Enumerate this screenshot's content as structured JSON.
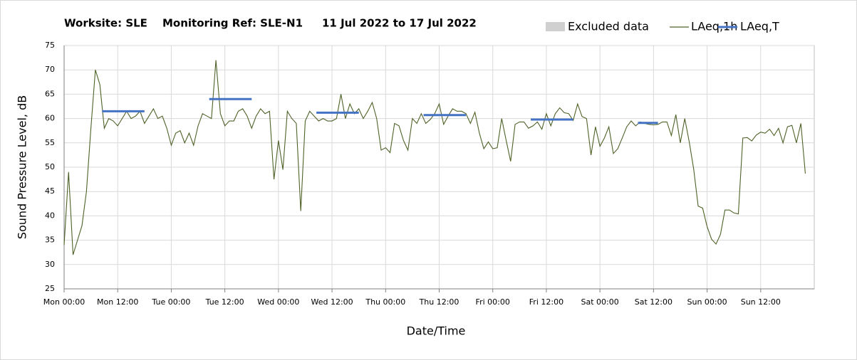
{
  "chart_data": {
    "type": "line",
    "title": [
      "Worksite: SLE",
      "Monitoring Ref: SLE-N1",
      "11 Jul 2022 to 17 Jul 2022"
    ],
    "xlabel": "Date/Time",
    "ylabel": "Sound Pressure Level, dB",
    "excluded_legend": {
      "name": "Excluded data",
      "color": "#d0d0d0"
    },
    "xlim": [
      0,
      168
    ],
    "xticks": [
      {
        "value": 0,
        "label": "Mon 00:00"
      },
      {
        "value": 12,
        "label": "Mon 12:00"
      },
      {
        "value": 24,
        "label": "Tue 00:00"
      },
      {
        "value": 36,
        "label": "Tue 12:00"
      },
      {
        "value": 48,
        "label": "Wed 00:00"
      },
      {
        "value": 60,
        "label": "Wed 12:00"
      },
      {
        "value": 72,
        "label": "Thu 00:00"
      },
      {
        "value": 84,
        "label": "Thu 12:00"
      },
      {
        "value": 96,
        "label": "Fri 00:00"
      },
      {
        "value": 108,
        "label": "Fri 12:00"
      },
      {
        "value": 120,
        "label": "Sat 00:00"
      },
      {
        "value": 132,
        "label": "Sat 12:00"
      },
      {
        "value": 144,
        "label": "Sun 00:00"
      },
      {
        "value": 156,
        "label": "Sun 12:00"
      }
    ],
    "ylim": [
      25,
      75
    ],
    "yticks": [
      25,
      30,
      35,
      40,
      45,
      50,
      55,
      60,
      65,
      70,
      75
    ],
    "grid": true,
    "series": [
      {
        "name": "LAeq,1h",
        "color": "#4f6228",
        "x": [
          0,
          1,
          2,
          3,
          4,
          5,
          6,
          7,
          8,
          9,
          10,
          11,
          12,
          13,
          14,
          15,
          16,
          17,
          18,
          19,
          20,
          21,
          22,
          23,
          24,
          25,
          26,
          27,
          28,
          29,
          30,
          31,
          32,
          33,
          34,
          35,
          36,
          37,
          38,
          39,
          40,
          41,
          42,
          43,
          44,
          45,
          46,
          47,
          48,
          49,
          50,
          51,
          52,
          53,
          54,
          55,
          56,
          57,
          58,
          59,
          60,
          61,
          62,
          63,
          64,
          65,
          66,
          67,
          68,
          69,
          70,
          71,
          72,
          73,
          74,
          75,
          76,
          77,
          78,
          79,
          80,
          81,
          82,
          83,
          84,
          85,
          86,
          87,
          88,
          89,
          90,
          91,
          92,
          93,
          94,
          95,
          96,
          97,
          98,
          99,
          100,
          101,
          102,
          103,
          104,
          105,
          106,
          107,
          108,
          109,
          110,
          111,
          112,
          113,
          114,
          115,
          116,
          117,
          118,
          119,
          120,
          121,
          122,
          123,
          124,
          125,
          126,
          127,
          128,
          129,
          130,
          131,
          132,
          133,
          134,
          135,
          136,
          137,
          138,
          139,
          140,
          141,
          142,
          143,
          144,
          145,
          146,
          147,
          148,
          149,
          150,
          151,
          152,
          153,
          154,
          155,
          156,
          157,
          158,
          159,
          160,
          161,
          162,
          163,
          164,
          165,
          166
        ],
        "values": [
          34,
          49,
          32,
          35,
          38,
          45,
          58,
          70,
          67,
          58,
          60,
          59.5,
          58.5,
          60,
          61.5,
          60,
          60.5,
          61.5,
          59,
          60.5,
          62,
          60,
          60.5,
          58,
          54.5,
          57,
          57.5,
          55,
          57,
          54.5,
          58.5,
          61,
          60.5,
          60,
          72,
          61,
          58.5,
          59.5,
          59.5,
          61.5,
          62,
          60.5,
          58,
          60.5,
          62,
          61,
          61.5,
          47.5,
          55.5,
          49.5,
          61.5,
          60,
          59,
          41,
          59.5,
          61.5,
          60.5,
          59.5,
          60,
          59.5,
          59.5,
          60,
          65,
          60,
          63,
          61,
          62,
          60,
          61.5,
          63.3,
          60,
          53.5,
          54,
          53,
          59,
          58.5,
          55.5,
          53.5,
          60,
          59,
          61,
          59,
          59.8,
          61,
          63,
          58.8,
          60.5,
          62,
          61.5,
          61.5,
          61,
          59,
          61.3,
          57,
          53.8,
          55.2,
          53.8,
          54,
          60,
          55.5,
          51.2,
          58.8,
          59.3,
          59.3,
          58,
          58.5,
          59.3,
          57.8,
          61,
          58.5,
          61,
          62.2,
          61.2,
          61,
          59.6,
          63,
          60.4,
          60,
          52.5,
          58.3,
          54.3,
          56,
          58.3,
          52.8,
          53.8,
          56,
          58.3,
          59.5,
          58.5,
          59.3,
          59,
          58.8,
          58.7,
          58.8,
          59.3,
          59.3,
          56.5,
          60.8,
          55,
          60,
          55.2,
          49.6,
          42,
          41.6,
          37.8,
          35.2,
          34.2,
          36.2,
          41.2,
          41.2,
          40.6,
          40.4,
          56,
          56.1,
          55.4,
          56.6,
          57.2,
          57,
          57.8,
          56.5,
          58,
          55,
          58.3,
          58.6,
          55,
          59,
          48.7
        ]
      },
      {
        "name": "LAeq,T",
        "color": "#4472c4",
        "x_ranges": [
          [
            8.5,
            18
          ],
          [
            32.5,
            42
          ],
          [
            56.5,
            66
          ],
          [
            80.5,
            90
          ],
          [
            104.5,
            114
          ],
          [
            128.5,
            133
          ]
        ],
        "values": [
          61.5,
          64,
          61.2,
          60.7,
          59.8,
          59.1
        ]
      }
    ]
  }
}
